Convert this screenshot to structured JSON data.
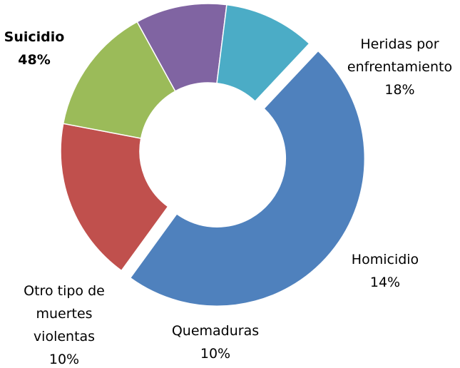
{
  "chart_data": {
    "type": "donut",
    "categories": [
      "Suicidio",
      "Heridas por enfrentamiento",
      "Homicidio",
      "Quemaduras",
      "Otro tipo de muertes violentas"
    ],
    "values": [
      48,
      18,
      14,
      10,
      10
    ],
    "value_labels": [
      "48%",
      "18%",
      "14%",
      "10%",
      "10%"
    ],
    "colors": [
      "#4f81bd",
      "#c0504d",
      "#9bbb59",
      "#8064a2",
      "#4bacc6"
    ],
    "exploded": "Suicidio"
  }
}
